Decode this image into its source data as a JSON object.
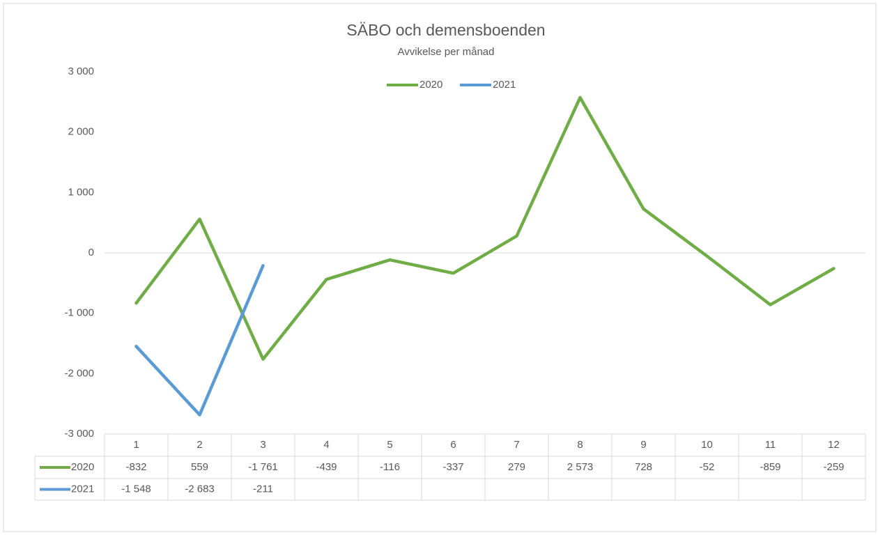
{
  "chart_data": {
    "type": "line",
    "title": "SÄBO och demensboenden",
    "subtitle": "Avvikelse per månad",
    "categories": [
      1,
      2,
      3,
      4,
      5,
      6,
      7,
      8,
      9,
      10,
      11,
      12
    ],
    "series": [
      {
        "name": "2020",
        "color": "#70ad47",
        "values": [
          -832,
          559,
          -1761,
          -439,
          -116,
          -337,
          279,
          2573,
          728,
          -52,
          -859,
          -259
        ],
        "value_labels": [
          "-832",
          "559",
          "-1 761",
          "-439",
          "-116",
          "-337",
          "279",
          "2 573",
          "728",
          "-52",
          "-859",
          "-259"
        ]
      },
      {
        "name": "2021",
        "color": "#5b9bd5",
        "values": [
          -1548,
          -2683,
          -211,
          null,
          null,
          null,
          null,
          null,
          null,
          null,
          null,
          null
        ],
        "value_labels": [
          "-1 548",
          "-2 683",
          "-211",
          null,
          null,
          null,
          null,
          null,
          null,
          null,
          null,
          null
        ]
      }
    ],
    "ylim": [
      -3000,
      3000
    ],
    "yticks": [
      {
        "value": -3000,
        "label": "-3 000"
      },
      {
        "value": -2000,
        "label": "-2 000"
      },
      {
        "value": -1000,
        "label": "-1 000"
      },
      0,
      {
        "value": 1000,
        "label": "1 000"
      },
      {
        "value": 2000,
        "label": "2 000"
      },
      {
        "value": 3000,
        "label": "3 000"
      }
    ],
    "grid": false,
    "legend": "top"
  }
}
